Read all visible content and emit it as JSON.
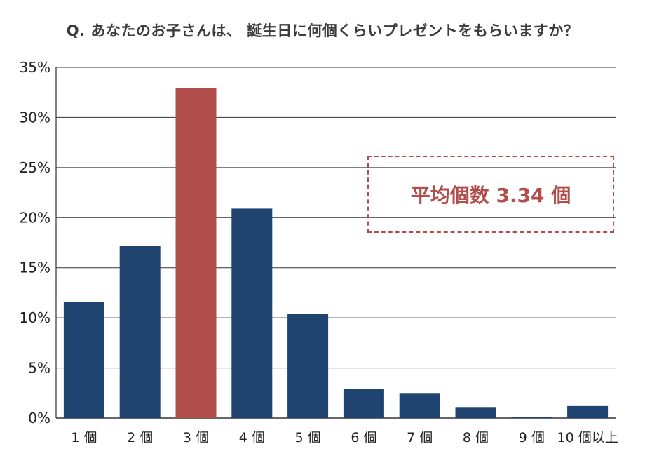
{
  "chart_data": {
    "type": "bar",
    "title": "Q. あなたのお子さんは、 誕生日に何個くらいプレゼントをもらいますか？",
    "categories": [
      "1 個",
      "2 個",
      "3 個",
      "4 個",
      "5 個",
      "6 個",
      "7 個",
      "8 個",
      "9 個",
      "10 個以上"
    ],
    "values": [
      11.6,
      17.2,
      32.9,
      20.9,
      10.4,
      2.9,
      2.5,
      1.1,
      0.0,
      1.2
    ],
    "yticks": [
      "0%",
      "5%",
      "10%",
      "15%",
      "20%",
      "25%",
      "30%",
      "35%"
    ],
    "ylim": [
      0,
      35
    ],
    "ylabel": "",
    "xlabel": "",
    "grid": true,
    "highlight_index": 2,
    "colors": {
      "bar": "#1e446f",
      "highlight": "#b14e4b",
      "grid": "#333333"
    },
    "annotation": "平均個数 3.34 個"
  }
}
